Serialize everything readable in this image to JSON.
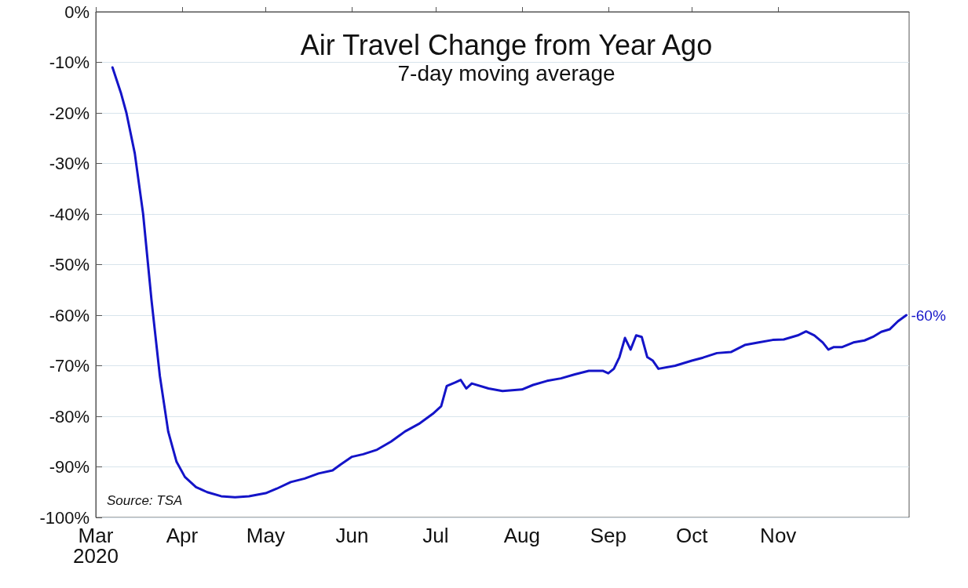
{
  "chart_data": {
    "type": "line",
    "title": "Air Travel Change from Year Ago",
    "subtitle": "7-day moving average",
    "annotations": [
      "Source: TSA",
      {
        "text": "-60%",
        "x": "2020-12-17",
        "y": -60
      }
    ],
    "xlim": [
      "2020-03-01",
      "2020-12-18"
    ],
    "xticks": [
      {
        "value": "2020-03-01",
        "label": "Mar\n2020"
      },
      {
        "value": "2020-04-01",
        "label": "Apr"
      },
      {
        "value": "2020-05-01",
        "label": "May"
      },
      {
        "value": "2020-06-01",
        "label": "Jun"
      },
      {
        "value": "2020-07-01",
        "label": "Jul"
      },
      {
        "value": "2020-08-01",
        "label": "Aug"
      },
      {
        "value": "2020-09-01",
        "label": "Sep"
      },
      {
        "value": "2020-10-01",
        "label": "Oct"
      },
      {
        "value": "2020-11-01",
        "label": "Nov"
      }
    ],
    "ylim": [
      -100,
      0
    ],
    "yticks": [
      {
        "value": 0,
        "label": "0%"
      },
      {
        "value": -10,
        "label": "-10%"
      },
      {
        "value": -20,
        "label": "-20%"
      },
      {
        "value": -30,
        "label": "-30%"
      },
      {
        "value": -40,
        "label": "-40%"
      },
      {
        "value": -50,
        "label": "-50%"
      },
      {
        "value": -60,
        "label": "-60%"
      },
      {
        "value": -70,
        "label": "-70%"
      },
      {
        "value": -80,
        "label": "-80%"
      },
      {
        "value": -90,
        "label": "-90%"
      },
      {
        "value": -100,
        "label": "-100%"
      }
    ],
    "grid": "y",
    "marker": "none",
    "line_style": "solid",
    "series": [
      {
        "color": "#1414c8",
        "x": [
          "2020-03-07",
          "2020-03-10",
          "2020-03-12",
          "2020-03-15",
          "2020-03-18",
          "2020-03-21",
          "2020-03-24",
          "2020-03-27",
          "2020-03-30",
          "2020-04-02",
          "2020-04-06",
          "2020-04-10",
          "2020-04-15",
          "2020-04-20",
          "2020-04-25",
          "2020-05-01",
          "2020-05-05",
          "2020-05-10",
          "2020-05-15",
          "2020-05-20",
          "2020-05-25",
          "2020-05-28",
          "2020-06-01",
          "2020-06-05",
          "2020-06-10",
          "2020-06-15",
          "2020-06-20",
          "2020-06-25",
          "2020-06-30",
          "2020-07-03",
          "2020-07-05",
          "2020-07-08",
          "2020-07-10",
          "2020-07-12",
          "2020-07-14",
          "2020-07-20",
          "2020-07-25",
          "2020-08-01",
          "2020-08-05",
          "2020-08-10",
          "2020-08-15",
          "2020-08-20",
          "2020-08-25",
          "2020-08-30",
          "2020-09-01",
          "2020-09-03",
          "2020-09-05",
          "2020-09-07",
          "2020-09-09",
          "2020-09-11",
          "2020-09-13",
          "2020-09-15",
          "2020-09-17",
          "2020-09-19",
          "2020-09-25",
          "2020-10-01",
          "2020-10-05",
          "2020-10-10",
          "2020-10-15",
          "2020-10-20",
          "2020-10-25",
          "2020-10-30",
          "2020-11-03",
          "2020-11-08",
          "2020-11-11",
          "2020-11-14",
          "2020-11-17",
          "2020-11-19",
          "2020-11-21",
          "2020-11-24",
          "2020-11-28",
          "2020-12-02",
          "2020-12-05",
          "2020-12-08",
          "2020-12-11",
          "2020-12-14",
          "2020-12-17"
        ],
        "values": [
          -11,
          -16,
          -20,
          -28,
          -40,
          -57,
          -72,
          -83,
          -89,
          -92,
          -94,
          -95,
          -95.8,
          -96,
          -95.8,
          -95.2,
          -94.3,
          -93,
          -92.3,
          -91.3,
          -90.7,
          -89.5,
          -88,
          -87.5,
          -86.6,
          -85,
          -83,
          -81.5,
          -79.5,
          -78,
          -74,
          -73.3,
          -72.8,
          -74.5,
          -73.5,
          -74.5,
          -75,
          -74.7,
          -73.8,
          -73,
          -72.5,
          -71.7,
          -71,
          -71,
          -71.5,
          -70.6,
          -68.3,
          -64.5,
          -66.8,
          -64,
          -64.3,
          -68.3,
          -69,
          -70.6,
          -70,
          -69,
          -68.4,
          -67.5,
          -67.3,
          -65.9,
          -65.4,
          -64.9,
          -64.8,
          -64,
          -63.2,
          -64,
          -65.4,
          -66.8,
          -66.3,
          -66.3,
          -65.4,
          -65,
          -64.3,
          -63.3,
          -62.8,
          -61.2,
          -60
        ]
      }
    ]
  }
}
